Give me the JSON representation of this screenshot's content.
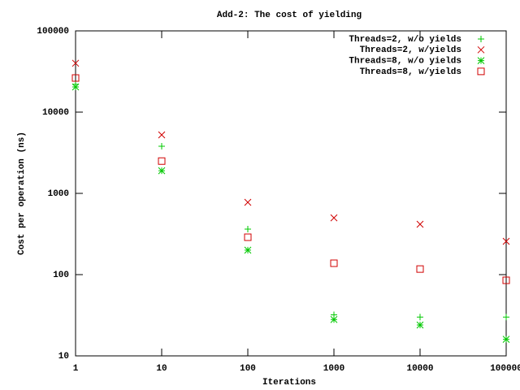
{
  "chart_data": {
    "type": "scatter",
    "title": "Add-2: The cost of yielding",
    "x_label": "Iterations",
    "y_label": "Cost per operation (ns)",
    "x": [
      1,
      10,
      100,
      1000,
      10000,
      100000
    ],
    "xscale": "log",
    "yscale": "log",
    "xlim": [
      1,
      100000
    ],
    "ylim": [
      10,
      100000
    ],
    "xticks": [
      1,
      10,
      100,
      1000,
      10000,
      100000
    ],
    "yticks": [
      10,
      100,
      1000,
      10000,
      100000
    ],
    "legend": "top-right",
    "series": [
      {
        "name": "Threads=2, w/o yields",
        "color": "#00c800",
        "marker": "plus",
        "values": [
          22000,
          3800,
          363,
          32,
          30,
          30
        ]
      },
      {
        "name": "Threads=2, w/yields",
        "color": "#d00000",
        "marker": "cross",
        "values": [
          40000,
          5250,
          776,
          500,
          417,
          257
        ]
      },
      {
        "name": "Threads=8, w/o yields",
        "color": "#00c800",
        "marker": "star",
        "values": [
          20400,
          1900,
          200,
          28,
          24,
          16
        ]
      },
      {
        "name": "Threads=8, w/yields",
        "color": "#d00000",
        "marker": "square",
        "values": [
          26300,
          2500,
          288,
          138,
          117,
          85
        ]
      }
    ]
  }
}
